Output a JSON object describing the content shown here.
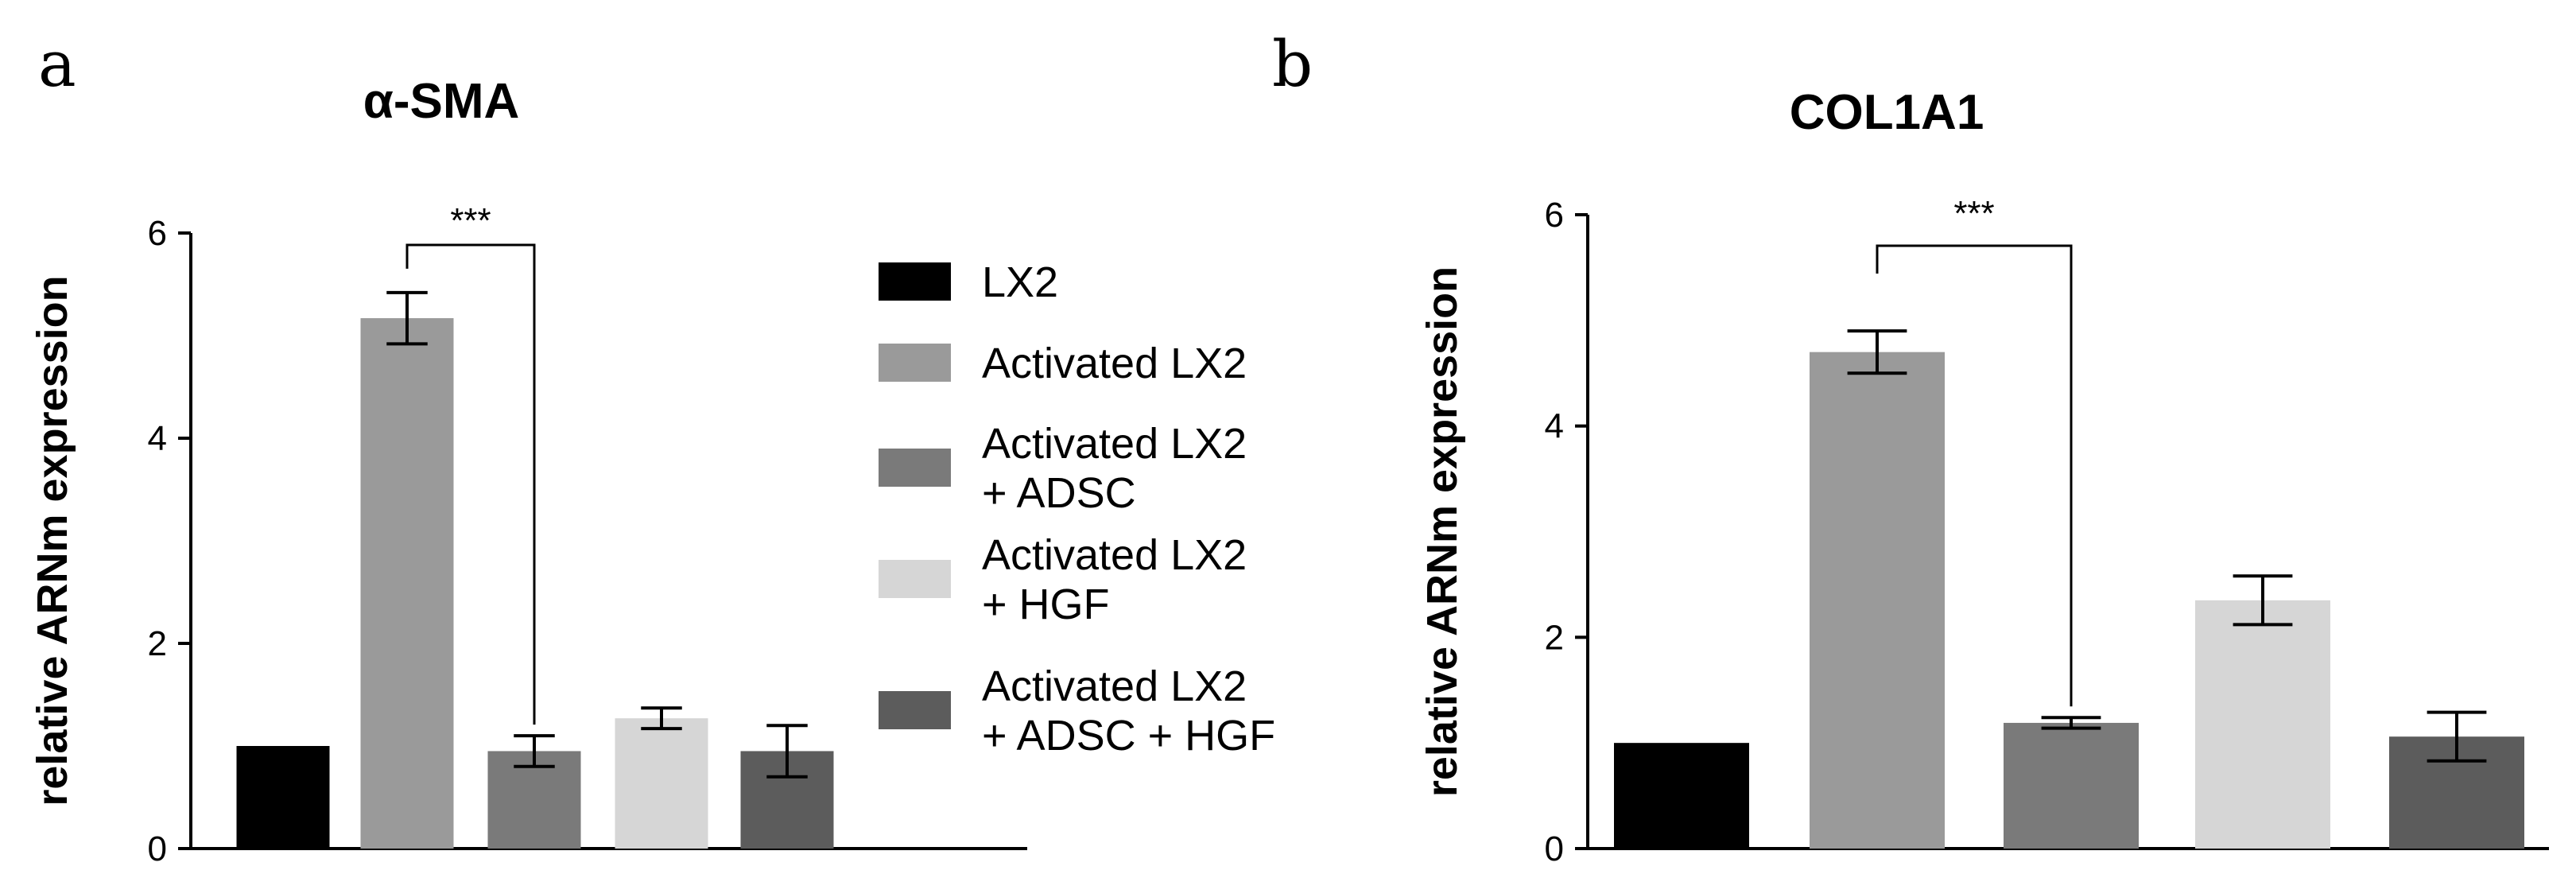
{
  "panel_labels": [
    "a",
    "b"
  ],
  "legend": [
    {
      "lines": [
        "LX2"
      ],
      "color": "#000000"
    },
    {
      "lines": [
        "Activated LX2"
      ],
      "color": "#9a9a9a"
    },
    {
      "lines": [
        "Activated LX2",
        "+ ADSC"
      ],
      "color": "#7a7a7a"
    },
    {
      "lines": [
        "Activated LX2",
        "+ HGF"
      ],
      "color": "#d6d6d6"
    },
    {
      "lines": [
        "Activated LX2",
        "+ ADSC + HGF"
      ],
      "color": "#5c5c5c"
    }
  ],
  "chart_data": [
    {
      "type": "bar",
      "title": "α-SMA",
      "ylabel": "relative ARNm expression",
      "ylim": [
        0,
        6
      ],
      "yticks": [
        0,
        2,
        4,
        6
      ],
      "categories": [
        "LX2",
        "Activated LX2",
        "Activated LX2 + ADSC",
        "Activated LX2 + HGF",
        "Activated LX2 + ADSC + HGF"
      ],
      "values": [
        1.0,
        5.17,
        0.95,
        1.27,
        0.95
      ],
      "errors": [
        0,
        0.25,
        0.15,
        0.1,
        0.25
      ],
      "colors": [
        "#000000",
        "#9a9a9a",
        "#7a7a7a",
        "#d6d6d6",
        "#5c5c5c"
      ],
      "significance": [
        {
          "from": 1,
          "to": 2,
          "label": "***"
        }
      ]
    },
    {
      "type": "bar",
      "title": "COL1A1",
      "ylabel": "relative ARNm expression",
      "ylim": [
        0,
        6
      ],
      "yticks": [
        0,
        2,
        4,
        6
      ],
      "categories": [
        "LX2",
        "Activated LX2",
        "Activated LX2 + ADSC",
        "Activated LX2 + HGF",
        "Activated LX2 + ADSC + HGF"
      ],
      "values": [
        1.0,
        4.7,
        1.19,
        2.35,
        1.06
      ],
      "errors": [
        0,
        0.2,
        0.05,
        0.23,
        0.23
      ],
      "colors": [
        "#000000",
        "#9a9a9a",
        "#7a7a7a",
        "#d6d6d6",
        "#5c5c5c"
      ],
      "significance": [
        {
          "from": 1,
          "to": 2,
          "label": "***"
        }
      ]
    }
  ]
}
